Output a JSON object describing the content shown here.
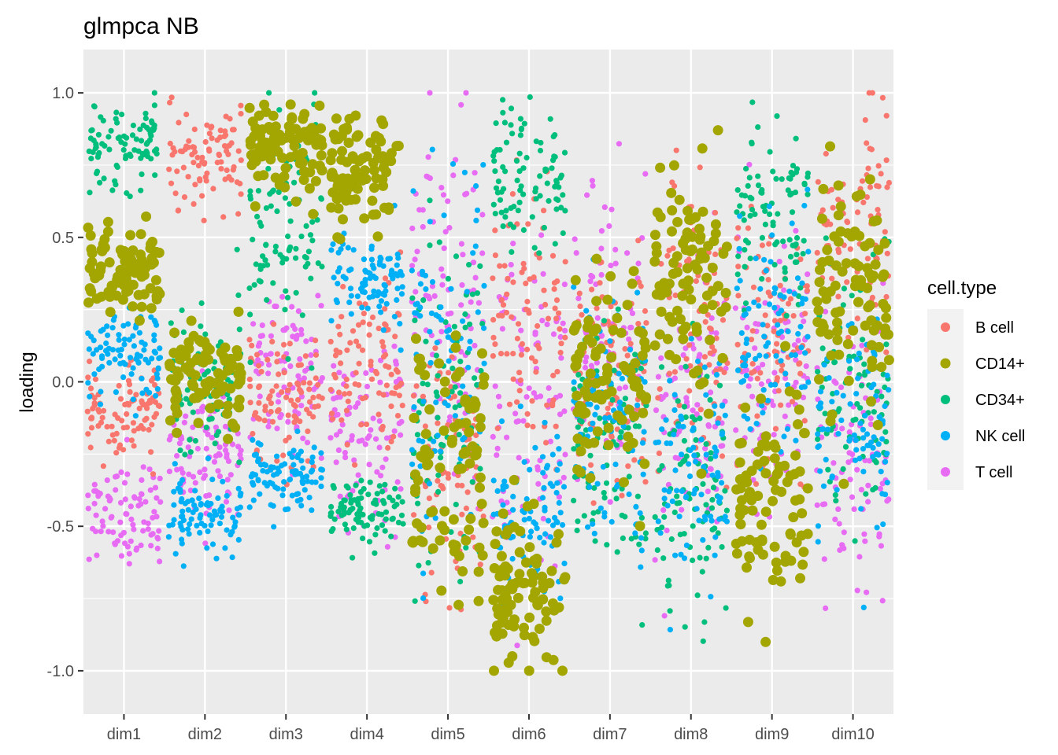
{
  "chart_data": {
    "type": "scatter",
    "title": "glmpca NB",
    "xlabel": "",
    "ylabel": "loading",
    "categories": [
      "dim1",
      "dim2",
      "dim3",
      "dim4",
      "dim5",
      "dim6",
      "dim7",
      "dim8",
      "dim9",
      "dim10"
    ],
    "ylim": [
      -1.15,
      1.15
    ],
    "yticks": [
      -1.0,
      -0.5,
      0.0,
      0.5,
      1.0
    ],
    "ytick_labels": [
      "-1.0",
      "-0.5",
      "0.0",
      "0.5",
      "1.0"
    ],
    "grid": true,
    "jitter": true,
    "legend": {
      "title": "cell.type",
      "position": "right"
    },
    "series": [
      {
        "name": "B cell",
        "color": "#F8766D",
        "size": "small",
        "clusters": [
          {
            "dim": "dim1",
            "center": -0.1,
            "spread": 0.08
          },
          {
            "dim": "dim2",
            "center": 0.78,
            "spread": 0.09
          },
          {
            "dim": "dim3",
            "center": -0.05,
            "spread": 0.12
          },
          {
            "dim": "dim4",
            "center": 0.08,
            "spread": 0.15
          },
          {
            "dim": "dim5",
            "center": -0.3,
            "spread": 0.25
          },
          {
            "dim": "dim6",
            "center": 0.25,
            "spread": 0.25
          },
          {
            "dim": "dim7",
            "center": 0.05,
            "spread": 0.22
          },
          {
            "dim": "dim8",
            "center": 0.2,
            "spread": 0.25
          },
          {
            "dim": "dim9",
            "center": 0.1,
            "spread": 0.22
          },
          {
            "dim": "dim10",
            "center": 0.55,
            "spread": 0.18
          }
        ]
      },
      {
        "name": "CD14+",
        "color": "#A3A500",
        "size": "large",
        "clusters": [
          {
            "dim": "dim1",
            "center": 0.38,
            "spread": 0.08
          },
          {
            "dim": "dim2",
            "center": 0.03,
            "spread": 0.08
          },
          {
            "dim": "dim3",
            "center": 0.82,
            "spread": 0.07
          },
          {
            "dim": "dim4",
            "center": 0.72,
            "spread": 0.1
          },
          {
            "dim": "dim5",
            "center": -0.3,
            "spread": 0.25
          },
          {
            "dim": "dim6",
            "center": -0.7,
            "spread": 0.15
          },
          {
            "dim": "dim7",
            "center": 0.0,
            "spread": 0.2
          },
          {
            "dim": "dim8",
            "center": 0.35,
            "spread": 0.2
          },
          {
            "dim": "dim9",
            "center": -0.4,
            "spread": 0.18
          },
          {
            "dim": "dim10",
            "center": 0.35,
            "spread": 0.2
          }
        ]
      },
      {
        "name": "CD34+",
        "color": "#00BF7D",
        "size": "small",
        "clusters": [
          {
            "dim": "dim1",
            "center": 0.82,
            "spread": 0.08
          },
          {
            "dim": "dim2",
            "center": 0.0,
            "spread": 0.12
          },
          {
            "dim": "dim3",
            "center": 0.5,
            "spread": 0.2
          },
          {
            "dim": "dim4",
            "center": -0.45,
            "spread": 0.06
          },
          {
            "dim": "dim5",
            "center": -0.1,
            "spread": 0.3
          },
          {
            "dim": "dim6",
            "center": 0.72,
            "spread": 0.12
          },
          {
            "dim": "dim7",
            "center": -0.25,
            "spread": 0.2
          },
          {
            "dim": "dim8",
            "center": -0.4,
            "spread": 0.25
          },
          {
            "dim": "dim9",
            "center": 0.55,
            "spread": 0.15
          },
          {
            "dim": "dim10",
            "center": 0.0,
            "spread": 0.25
          }
        ]
      },
      {
        "name": "NK cell",
        "color": "#00B0F6",
        "size": "small",
        "clusters": [
          {
            "dim": "dim1",
            "center": 0.1,
            "spread": 0.08
          },
          {
            "dim": "dim2",
            "center": -0.45,
            "spread": 0.07
          },
          {
            "dim": "dim3",
            "center": -0.32,
            "spread": 0.07
          },
          {
            "dim": "dim4",
            "center": 0.35,
            "spread": 0.08
          },
          {
            "dim": "dim5",
            "center": 0.1,
            "spread": 0.3
          },
          {
            "dim": "dim6",
            "center": -0.45,
            "spread": 0.15
          },
          {
            "dim": "dim7",
            "center": -0.15,
            "spread": 0.2
          },
          {
            "dim": "dim8",
            "center": -0.3,
            "spread": 0.22
          },
          {
            "dim": "dim9",
            "center": 0.2,
            "spread": 0.2
          },
          {
            "dim": "dim10",
            "center": -0.15,
            "spread": 0.22
          }
        ]
      },
      {
        "name": "T cell",
        "color": "#E76BF3",
        "size": "small",
        "clusters": [
          {
            "dim": "dim1",
            "center": -0.45,
            "spread": 0.09
          },
          {
            "dim": "dim2",
            "center": -0.25,
            "spread": 0.12
          },
          {
            "dim": "dim3",
            "center": 0.05,
            "spread": 0.15
          },
          {
            "dim": "dim4",
            "center": -0.15,
            "spread": 0.15
          },
          {
            "dim": "dim5",
            "center": 0.3,
            "spread": 0.3
          },
          {
            "dim": "dim6",
            "center": -0.05,
            "spread": 0.3
          },
          {
            "dim": "dim7",
            "center": 0.15,
            "spread": 0.25
          },
          {
            "dim": "dim8",
            "center": -0.1,
            "spread": 0.25
          },
          {
            "dim": "dim9",
            "center": 0.0,
            "spread": 0.25
          },
          {
            "dim": "dim10",
            "center": -0.3,
            "spread": 0.22
          }
        ]
      }
    ]
  }
}
